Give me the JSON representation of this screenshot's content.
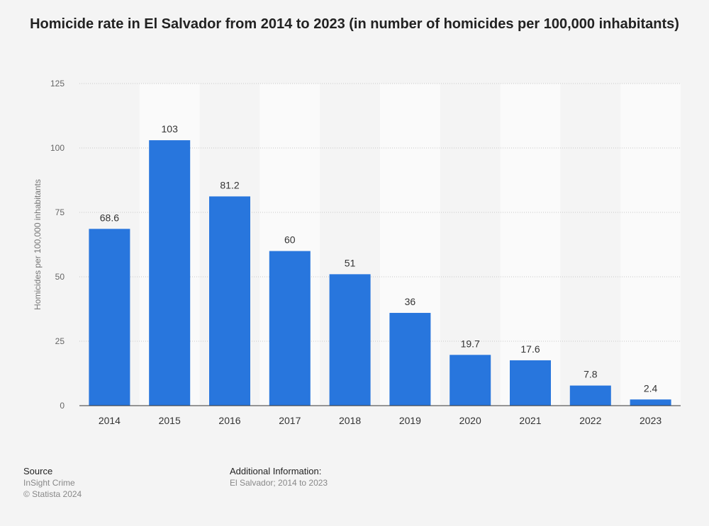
{
  "title": "Homicide rate in El Salvador from 2014 to 2023 (in number of homicides per 100,000 inhabitants)",
  "chart_data": {
    "type": "bar",
    "categories": [
      "2014",
      "2015",
      "2016",
      "2017",
      "2018",
      "2019",
      "2020",
      "2021",
      "2022",
      "2023"
    ],
    "values": [
      68.6,
      103,
      81.2,
      60,
      51,
      36,
      19.7,
      17.6,
      7.8,
      2.4
    ],
    "value_labels": [
      "68.6",
      "103",
      "81.2",
      "60",
      "51",
      "36",
      "19.7",
      "17.6",
      "7.8",
      "2.4"
    ],
    "xlabel": "",
    "ylabel": "Homicides per 100,000 inhabitants",
    "ylim": [
      0,
      125
    ],
    "yticks": [
      0,
      25,
      50,
      75,
      100,
      125
    ],
    "grid": true,
    "bar_color": "#2876dd",
    "band_color": "#fafafa"
  },
  "footer": {
    "source_heading": "Source",
    "source_lines": [
      "InSight Crime",
      "© Statista 2024"
    ],
    "info_heading": "Additional Information:",
    "info_text": "El Salvador; 2014 to 2023"
  }
}
